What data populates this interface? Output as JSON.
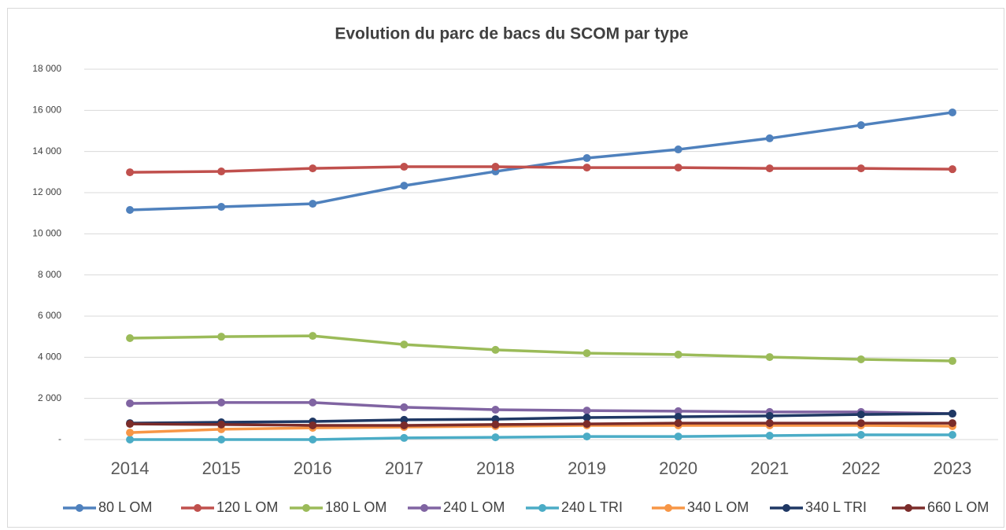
{
  "chart_data": {
    "type": "line",
    "title": "Evolution du parc de bacs du SCOM par type",
    "categories": [
      "2014",
      "2015",
      "2016",
      "2017",
      "2018",
      "2019",
      "2020",
      "2021",
      "2022",
      "2023"
    ],
    "ylim": [
      0,
      18000
    ],
    "yticks": [
      {
        "value": 0,
        "label": "-"
      },
      {
        "value": 2000,
        "label": "2 000"
      },
      {
        "value": 4000,
        "label": "4 000"
      },
      {
        "value": 6000,
        "label": "6 000"
      },
      {
        "value": 8000,
        "label": "8 000"
      },
      {
        "value": 10000,
        "label": "10 000"
      },
      {
        "value": 12000,
        "label": "12 000"
      },
      {
        "value": 14000,
        "label": "14 000"
      },
      {
        "value": 16000,
        "label": "16 000"
      },
      {
        "value": 18000,
        "label": "18 000"
      }
    ],
    "grid": true,
    "legend": "bottom",
    "series": [
      {
        "name": "80 L OM",
        "color": "#4f81bd",
        "values": [
          11160,
          11310,
          11460,
          12340,
          13030,
          13680,
          14100,
          14640,
          15280,
          15900
        ]
      },
      {
        "name": "120 L OM",
        "color": "#c0504d",
        "values": [
          12990,
          13030,
          13180,
          13260,
          13260,
          13220,
          13220,
          13180,
          13180,
          13140
        ]
      },
      {
        "name": "180 L OM",
        "color": "#9bbb59",
        "values": [
          4930,
          5000,
          5040,
          4620,
          4360,
          4200,
          4130,
          4010,
          3900,
          3820
        ]
      },
      {
        "name": "240 L OM",
        "color": "#8064a2",
        "values": [
          1760,
          1800,
          1800,
          1570,
          1450,
          1410,
          1380,
          1340,
          1340,
          1260
        ]
      },
      {
        "name": "240 L TRI",
        "color": "#4bacc6",
        "values": [
          0,
          0,
          0,
          80,
          110,
          150,
          150,
          190,
          230,
          230
        ]
      },
      {
        "name": "340 L OM",
        "color": "#f79646",
        "values": [
          340,
          500,
          570,
          610,
          650,
          690,
          690,
          690,
          690,
          650
        ]
      },
      {
        "name": "340 L TRI",
        "color": "#1f3864",
        "values": [
          800,
          840,
          880,
          960,
          990,
          1070,
          1110,
          1150,
          1220,
          1260
        ]
      },
      {
        "name": "660 L OM",
        "color": "#7b2c2a",
        "values": [
          760,
          730,
          690,
          690,
          730,
          760,
          800,
          800,
          800,
          800
        ]
      }
    ]
  }
}
